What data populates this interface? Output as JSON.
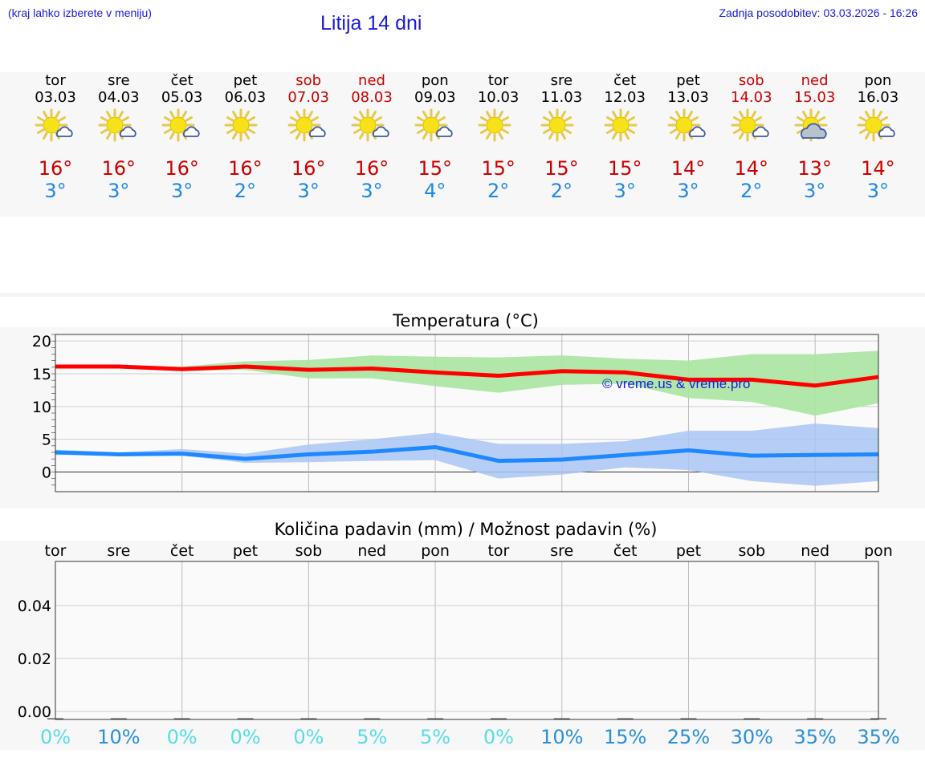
{
  "header": {
    "hint": "(kraj lahko izberete v meniju)",
    "title": "Litija 14 dni",
    "updated": "Zadnja posodobitev: 03.03.2026 - 16:26"
  },
  "days": [
    {
      "name": "tor",
      "date": "03.03",
      "icon": "sun-cloud-icon",
      "tmax": "16°",
      "tmin": "3°",
      "weekend": false
    },
    {
      "name": "sre",
      "date": "04.03",
      "icon": "sun-cloud-icon",
      "tmax": "16°",
      "tmin": "3°",
      "weekend": false
    },
    {
      "name": "čet",
      "date": "05.03",
      "icon": "sun-cloud-icon",
      "tmax": "16°",
      "tmin": "3°",
      "weekend": false
    },
    {
      "name": "pet",
      "date": "06.03",
      "icon": "sun-icon",
      "tmax": "16°",
      "tmin": "2°",
      "weekend": false
    },
    {
      "name": "sob",
      "date": "07.03",
      "icon": "sun-cloud-icon",
      "tmax": "16°",
      "tmin": "3°",
      "weekend": true
    },
    {
      "name": "ned",
      "date": "08.03",
      "icon": "sun-cloud-icon",
      "tmax": "16°",
      "tmin": "3°",
      "weekend": true
    },
    {
      "name": "pon",
      "date": "09.03",
      "icon": "sun-cloud-icon",
      "tmax": "15°",
      "tmin": "4°",
      "weekend": false
    },
    {
      "name": "tor",
      "date": "10.03",
      "icon": "sun-icon",
      "tmax": "15°",
      "tmin": "2°",
      "weekend": false
    },
    {
      "name": "sre",
      "date": "11.03",
      "icon": "sun-icon",
      "tmax": "15°",
      "tmin": "2°",
      "weekend": false
    },
    {
      "name": "čet",
      "date": "12.03",
      "icon": "sun-icon",
      "tmax": "15°",
      "tmin": "3°",
      "weekend": false
    },
    {
      "name": "pet",
      "date": "13.03",
      "icon": "sun-cloud-icon",
      "tmax": "14°",
      "tmin": "3°",
      "weekend": false
    },
    {
      "name": "sob",
      "date": "14.03",
      "icon": "sun-cloud-icon",
      "tmax": "14°",
      "tmin": "2°",
      "weekend": true
    },
    {
      "name": "ned",
      "date": "15.03",
      "icon": "cloudy-sun-icon",
      "tmax": "13°",
      "tmin": "3°",
      "weekend": true
    },
    {
      "name": "pon",
      "date": "16.03",
      "icon": "sun-cloud-icon",
      "tmax": "14°",
      "tmin": "3°",
      "weekend": false
    }
  ],
  "colors": {
    "max_line": "#ff0000",
    "max_band": "#a8e6a0",
    "min_line": "#1e88ff",
    "min_band": "#a9c4f5",
    "prob_low": "#55dde8",
    "prob_high": "#2a90d8",
    "weekend": "#cc0000",
    "title": "#1a1adb"
  },
  "chart_data": [
    {
      "type": "line",
      "title": "Temperatura (°C)",
      "ylim": [
        -3,
        21
      ],
      "yticks": [
        0,
        5,
        10,
        15,
        20
      ],
      "watermark": "© vreme.us & vreme.pro",
      "x": [
        "03.03",
        "04.03",
        "05.03",
        "06.03",
        "07.03",
        "08.03",
        "09.03",
        "10.03",
        "11.03",
        "12.03",
        "13.03",
        "14.03",
        "15.03",
        "16.03"
      ],
      "series": [
        {
          "name": "max",
          "values": [
            16.1,
            16.1,
            15.7,
            16.1,
            15.6,
            15.8,
            15.2,
            14.7,
            15.4,
            15.2,
            14.1,
            14.1,
            13.2,
            14.5
          ],
          "band_low": [
            16.1,
            16.1,
            15.4,
            15.6,
            14.3,
            14.3,
            13.1,
            12.1,
            13.3,
            13.5,
            11.3,
            10.7,
            8.6,
            10.5
          ],
          "band_high": [
            16.1,
            16.1,
            16.1,
            16.9,
            17.1,
            17.8,
            17.6,
            17.5,
            17.8,
            17.3,
            17.0,
            18.0,
            18.0,
            18.5
          ]
        },
        {
          "name": "min",
          "values": [
            3.0,
            2.7,
            2.8,
            2.0,
            2.7,
            3.1,
            3.8,
            1.7,
            1.9,
            2.6,
            3.3,
            2.5,
            2.6,
            2.7
          ],
          "band_low": [
            2.6,
            2.6,
            2.5,
            1.4,
            1.5,
            1.7,
            1.8,
            -1.0,
            -0.4,
            0.7,
            0.3,
            -1.4,
            -2.1,
            -1.4
          ],
          "band_high": [
            3.4,
            3.0,
            3.5,
            2.8,
            4.2,
            5.0,
            6.0,
            4.3,
            4.3,
            4.7,
            6.3,
            6.3,
            7.4,
            6.7
          ]
        }
      ]
    },
    {
      "type": "bar",
      "title": "Količina padavin (mm) / Možnost padavin (%)",
      "ylim": [
        0,
        0.055
      ],
      "yticks": [
        "0.00",
        "0.02",
        "0.04"
      ],
      "categories": [
        "tor",
        "sre",
        "čet",
        "pet",
        "sob",
        "ned",
        "pon",
        "tor",
        "sre",
        "čet",
        "pet",
        "sob",
        "ned",
        "pon"
      ],
      "values": [
        0,
        0,
        0,
        0,
        0,
        0,
        0,
        0,
        0,
        0,
        0,
        0,
        0,
        0
      ],
      "probability": [
        "0%",
        "10%",
        "0%",
        "0%",
        "0%",
        "5%",
        "5%",
        "0%",
        "10%",
        "15%",
        "25%",
        "30%",
        "35%",
        "35%"
      ]
    }
  ]
}
